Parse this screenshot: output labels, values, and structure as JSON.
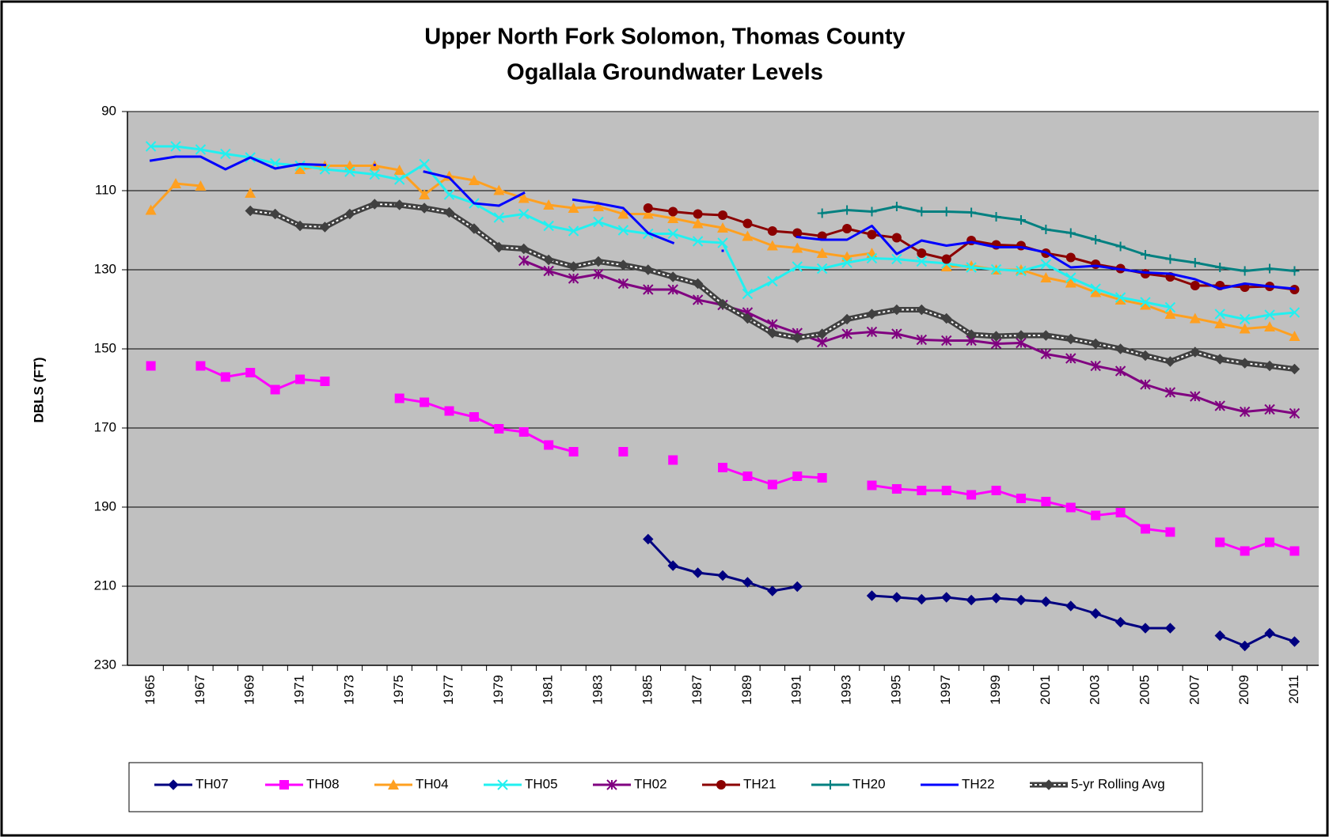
{
  "chart_data": {
    "type": "line",
    "title": "Upper North Fork Solomon, Thomas County",
    "subtitle": "Ogallala Groundwater Levels",
    "y_label": "DBLS (FT)",
    "categories": [
      "1965",
      null,
      "1967",
      null,
      "1969",
      null,
      "1971",
      null,
      "1973",
      null,
      "1975",
      null,
      "1977",
      null,
      "1979",
      null,
      "1981",
      null,
      "1983",
      null,
      "1985",
      null,
      "1987",
      null,
      "1989",
      null,
      "1991",
      null,
      "1993",
      null,
      "1995",
      null,
      "1997",
      null,
      "1999",
      null,
      "2001",
      null,
      "2003",
      null,
      "2005",
      null,
      "2007",
      null,
      "2009",
      null,
      "2011"
    ],
    "ylim": [
      90,
      230
    ],
    "yticks": [
      90,
      110,
      130,
      150,
      170,
      190,
      210,
      230
    ],
    "y_reversed": true,
    "grid": true,
    "legend": "bottom",
    "series": [
      {
        "name": "TH07",
        "color": "#000080",
        "marker": "diamond",
        "values": [
          null,
          null,
          null,
          null,
          null,
          null,
          null,
          null,
          null,
          null,
          null,
          null,
          null,
          null,
          null,
          null,
          null,
          null,
          null,
          null,
          198.1,
          204.8,
          206.6,
          207.3,
          209,
          211.2,
          210.1,
          null,
          null,
          212.4,
          212.8,
          213.3,
          212.8,
          213.5,
          213,
          213.5,
          213.9,
          215,
          216.9,
          219.1,
          220.6,
          220.6,
          null,
          222.5,
          225.1,
          221.9,
          224
        ]
      },
      {
        "name": "TH08",
        "color": "#ff00ff",
        "marker": "square",
        "values": [
          154.3,
          null,
          154.3,
          157.1,
          156,
          160.3,
          157.7,
          158.2,
          null,
          null,
          162.5,
          163.5,
          165.7,
          167.2,
          170.2,
          171,
          174.3,
          176,
          null,
          176,
          null,
          178.1,
          null,
          180,
          182.2,
          184.3,
          182.2,
          182.6,
          null,
          184.5,
          185.4,
          185.8,
          185.8,
          186.9,
          185.8,
          187.8,
          188.6,
          190.1,
          192.1,
          191.4,
          195.5,
          196.3,
          null,
          198.9,
          201.1,
          198.9,
          201.1
        ]
      },
      {
        "name": "TH04",
        "color": "#ffa020",
        "marker": "triangle",
        "values": [
          114.9,
          108.2,
          108.8,
          null,
          110.6,
          null,
          104.6,
          103.7,
          103.7,
          103.7,
          104.8,
          111,
          106.3,
          107.4,
          109.9,
          111.9,
          113.6,
          114.4,
          114,
          115.9,
          115.9,
          117,
          118.3,
          119.4,
          121.5,
          123.9,
          124.5,
          125.8,
          126.7,
          125.8,
          null,
          null,
          129.2,
          129,
          130,
          130,
          132,
          133.3,
          135.7,
          137.6,
          138.9,
          141.2,
          142.3,
          143.6,
          144.9,
          144.4,
          146.8
        ]
      },
      {
        "name": "TH05",
        "color": "#22f0f0",
        "marker": "x",
        "values": [
          98.8,
          98.8,
          99.6,
          100.7,
          101.6,
          103.1,
          103.7,
          104.6,
          105.2,
          105.9,
          107.2,
          103.3,
          111,
          113.2,
          116.8,
          115.9,
          118.9,
          120.2,
          117.9,
          120,
          120.9,
          120.9,
          122.8,
          123.2,
          136.1,
          132.9,
          129.2,
          129.7,
          128.2,
          127.1,
          127.3,
          127.9,
          128.4,
          129.4,
          129.9,
          130.3,
          128.6,
          132,
          134.8,
          137,
          138.2,
          139.5,
          null,
          141.2,
          142.5,
          141.4,
          140.8
        ]
      },
      {
        "name": "TH02",
        "color": "#800080",
        "marker": "asterisk",
        "values": [
          null,
          null,
          null,
          null,
          null,
          null,
          null,
          null,
          null,
          null,
          null,
          null,
          null,
          null,
          null,
          127.7,
          130.3,
          132.2,
          131.1,
          133.5,
          135,
          135,
          137.6,
          138.9,
          140.8,
          143.8,
          146,
          148.3,
          146.2,
          145.7,
          146.2,
          147.7,
          147.9,
          147.9,
          148.7,
          148.5,
          151.3,
          152.4,
          154.3,
          155.6,
          159,
          161,
          162,
          164.4,
          165.9,
          165.3,
          166.3
        ]
      },
      {
        "name": "TH21",
        "color": "#8b0000",
        "marker": "circle",
        "values": [
          null,
          null,
          null,
          null,
          null,
          null,
          null,
          null,
          null,
          null,
          null,
          null,
          null,
          null,
          null,
          null,
          null,
          null,
          null,
          null,
          114.4,
          115.3,
          115.9,
          116.2,
          118.3,
          120.2,
          120.7,
          121.5,
          119.6,
          121.1,
          121.9,
          125.8,
          127.3,
          122.6,
          123.7,
          123.9,
          125.8,
          126.9,
          128.6,
          129.7,
          131,
          131.8,
          134,
          134,
          134.4,
          134.2,
          135
        ]
      },
      {
        "name": "TH20",
        "color": "#008080",
        "marker": "plus",
        "values": [
          null,
          null,
          null,
          null,
          null,
          null,
          null,
          null,
          null,
          null,
          null,
          null,
          null,
          null,
          null,
          null,
          null,
          null,
          null,
          null,
          null,
          null,
          null,
          null,
          null,
          null,
          null,
          115.7,
          114.9,
          115.3,
          114,
          115.3,
          115.3,
          115.5,
          116.6,
          117.4,
          119.8,
          120.7,
          122.4,
          124.1,
          126.2,
          127.3,
          128.2,
          129.4,
          130.3,
          129.7,
          130.3
        ]
      },
      {
        "name": "TH22",
        "color": "#0000ff",
        "marker": "none",
        "values": [
          102.4,
          101.4,
          101.4,
          104.6,
          101.6,
          104.4,
          103.3,
          103.5,
          null,
          103.5,
          null,
          105.2,
          106.7,
          113.2,
          113.8,
          110.6,
          null,
          112.3,
          113.2,
          114.4,
          120.7,
          123.2,
          null,
          125.2,
          null,
          null,
          121.7,
          122.4,
          122.4,
          118.9,
          126,
          122.6,
          123.9,
          123,
          124.3,
          124.3,
          125.6,
          129.4,
          129,
          129.9,
          130.7,
          131,
          132.4,
          134.8,
          133.5,
          134.2,
          134.8
        ]
      },
      {
        "name": "5-yr Rolling Avg",
        "color": "#404040",
        "marker": "diamond",
        "line_style": "white-dotted",
        "values": [
          null,
          null,
          null,
          null,
          115.1,
          115.9,
          118.9,
          119.2,
          115.9,
          113.4,
          113.6,
          114.4,
          115.5,
          119.6,
          124.3,
          124.7,
          127.5,
          129.2,
          127.9,
          128.8,
          130,
          131.8,
          133.5,
          138.7,
          142.3,
          146,
          147.2,
          146.2,
          142.5,
          141.2,
          140.1,
          140.1,
          142.3,
          146.4,
          146.8,
          146.6,
          146.6,
          147.5,
          148.7,
          150,
          151.7,
          153.2,
          150.8,
          152.6,
          153.6,
          154.3,
          155.1
        ]
      }
    ]
  }
}
